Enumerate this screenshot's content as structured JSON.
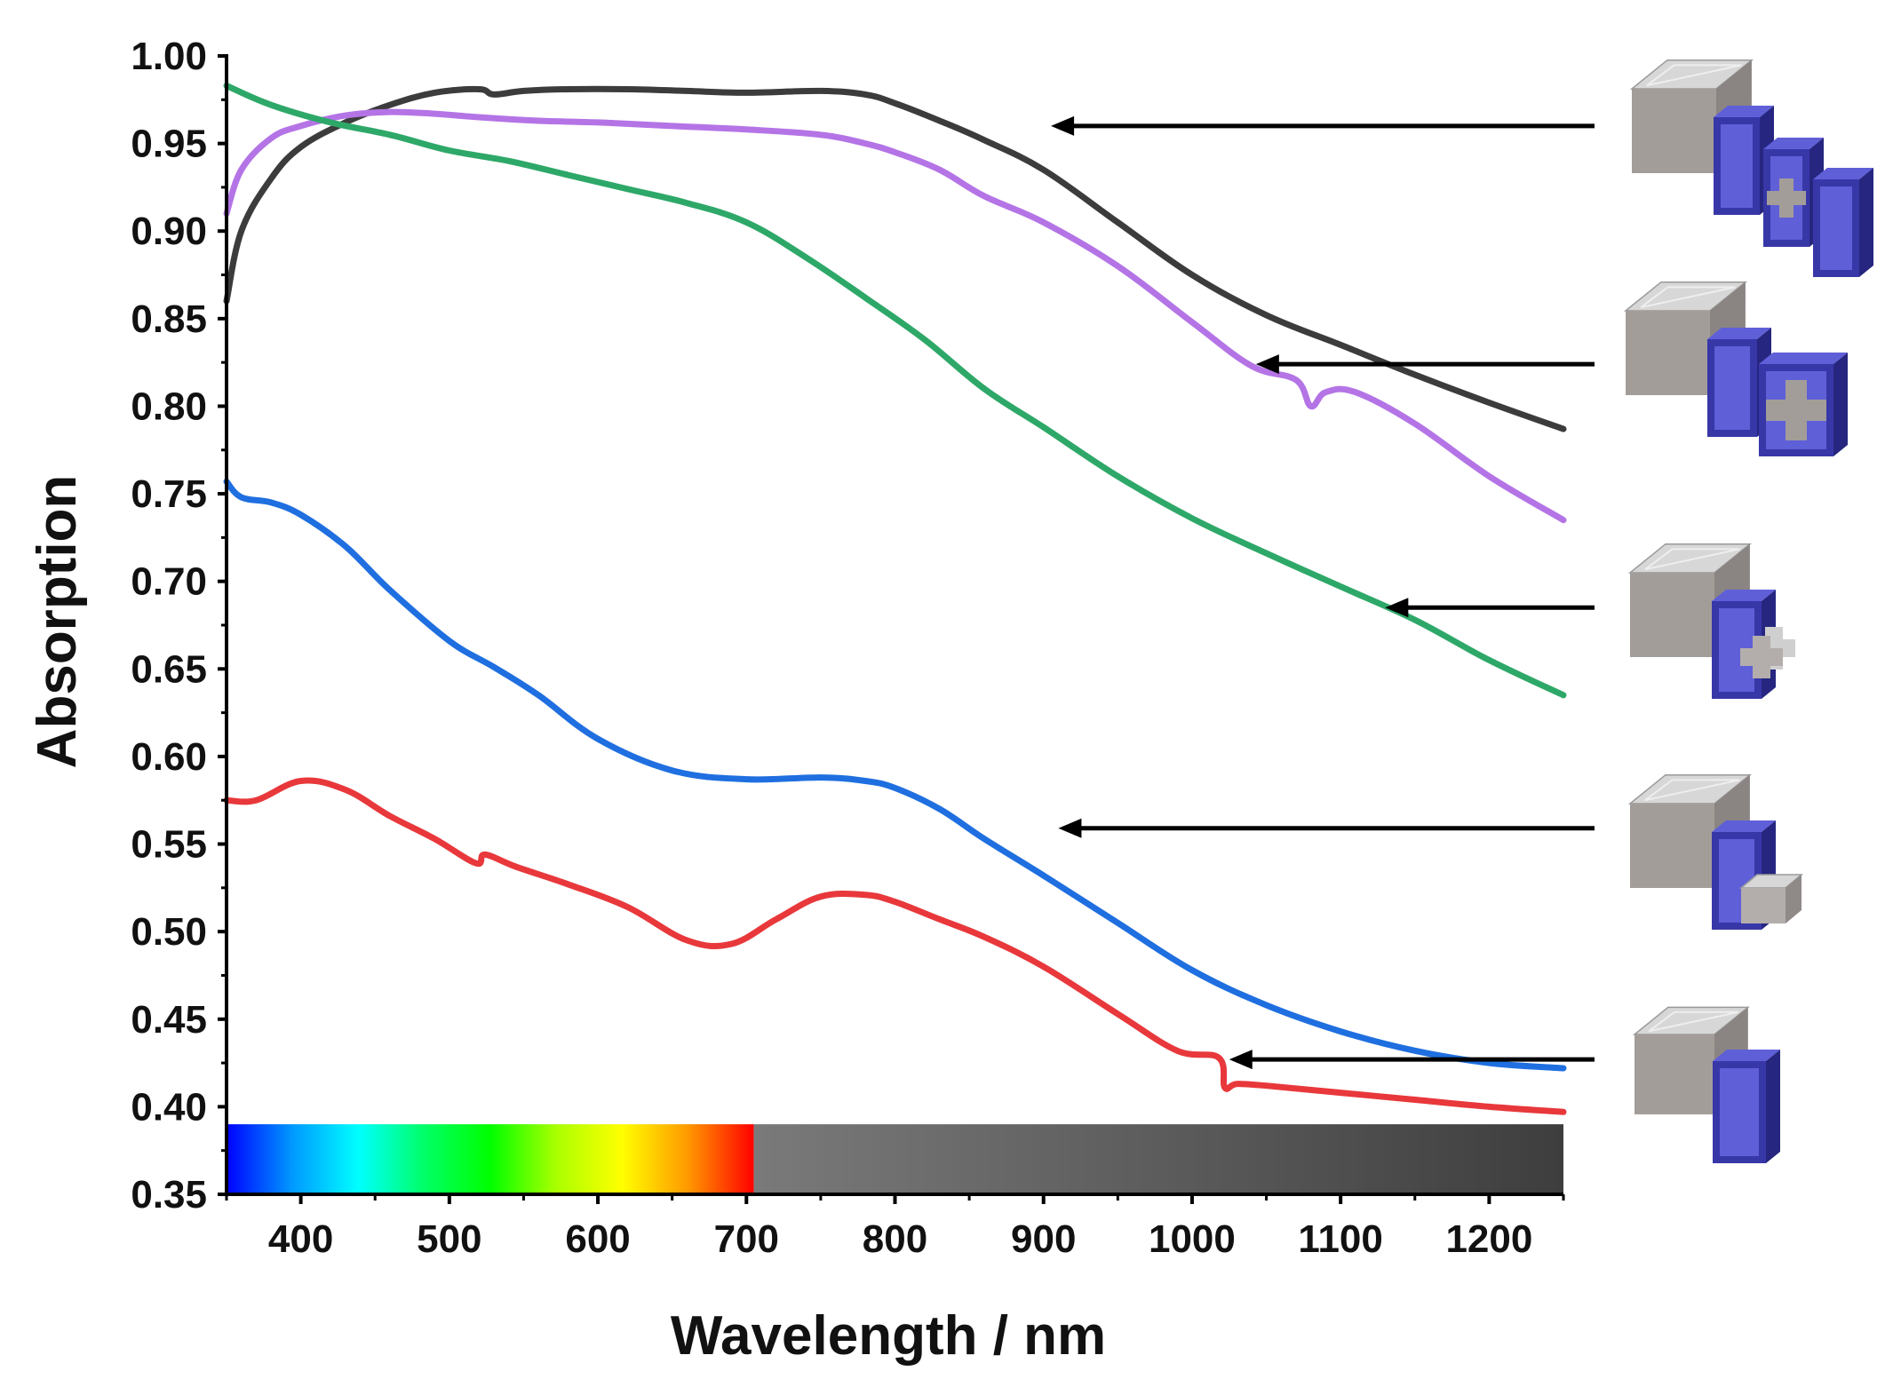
{
  "chart_data": {
    "type": "line",
    "title": "",
    "xlabel": "Wavelength / nm",
    "ylabel": "Absorption",
    "xlim": [
      350,
      1250
    ],
    "ylim": [
      0.35,
      1.0
    ],
    "xticks": [
      "400",
      "500",
      "600",
      "700",
      "800",
      "900",
      "1000",
      "1100",
      "1200"
    ],
    "yticks": [
      "0.35",
      "0.40",
      "0.45",
      "0.50",
      "0.55",
      "0.60",
      "0.65",
      "0.70",
      "0.75",
      "0.80",
      "0.85",
      "0.90",
      "0.95",
      "1.00"
    ],
    "grid": false,
    "spectrum_band": {
      "visible_range": [
        350,
        705
      ],
      "infrared_range": [
        705,
        1250
      ],
      "visible_colors": [
        "#0000ff",
        "#0099ff",
        "#00ffff",
        "#00ff66",
        "#00ff00",
        "#aaff00",
        "#ffff00",
        "#ff9900",
        "#ff0000"
      ],
      "infrared_colors": [
        "#7a7a7a",
        "#3e3e3e"
      ]
    },
    "series": [
      {
        "name": "four-layer structure (cube, plate, cross-cut plate, plate)",
        "color": "#3c3c3c",
        "x": [
          350,
          360,
          380,
          400,
          430,
          460,
          490,
          520,
          530,
          550,
          580,
          620,
          660,
          700,
          750,
          780,
          800,
          830,
          860,
          900,
          950,
          1000,
          1050,
          1100,
          1150,
          1200,
          1250
        ],
        "y": [
          0.86,
          0.9,
          0.93,
          0.948,
          0.962,
          0.972,
          0.979,
          0.981,
          0.978,
          0.98,
          0.981,
          0.981,
          0.98,
          0.979,
          0.98,
          0.978,
          0.973,
          0.963,
          0.952,
          0.935,
          0.905,
          0.875,
          0.852,
          0.835,
          0.818,
          0.802,
          0.787
        ]
      },
      {
        "name": "three-layer structure (cube, plate, plate with cross hole)",
        "color": "#b474e6",
        "x": [
          350,
          360,
          380,
          400,
          430,
          460,
          490,
          520,
          560,
          600,
          650,
          700,
          750,
          780,
          800,
          830,
          860,
          900,
          950,
          1000,
          1040,
          1070,
          1080,
          1090,
          1110,
          1150,
          1200,
          1250
        ],
        "y": [
          0.91,
          0.935,
          0.953,
          0.96,
          0.966,
          0.968,
          0.967,
          0.965,
          0.963,
          0.962,
          0.96,
          0.958,
          0.955,
          0.95,
          0.945,
          0.935,
          0.92,
          0.905,
          0.88,
          0.848,
          0.823,
          0.815,
          0.8,
          0.808,
          0.808,
          0.79,
          0.76,
          0.735
        ]
      },
      {
        "name": "two-layer structure (cube, plate with cross block)",
        "color": "#2ea868",
        "x": [
          350,
          380,
          420,
          460,
          500,
          540,
          580,
          620,
          660,
          700,
          740,
          780,
          820,
          860,
          900,
          950,
          1000,
          1050,
          1100,
          1150,
          1200,
          1250
        ],
        "y": [
          0.983,
          0.972,
          0.962,
          0.955,
          0.946,
          0.94,
          0.932,
          0.924,
          0.916,
          0.905,
          0.885,
          0.862,
          0.838,
          0.81,
          0.788,
          0.76,
          0.736,
          0.716,
          0.697,
          0.678,
          0.655,
          0.635
        ]
      },
      {
        "name": "two-layer structure (cube, plate with square block)",
        "color": "#1f6fe0",
        "x": [
          350,
          360,
          380,
          400,
          430,
          460,
          500,
          530,
          560,
          600,
          650,
          700,
          750,
          780,
          800,
          830,
          860,
          900,
          950,
          1000,
          1050,
          1100,
          1150,
          1200,
          1250
        ],
        "y": [
          0.757,
          0.748,
          0.745,
          0.738,
          0.72,
          0.695,
          0.666,
          0.651,
          0.635,
          0.61,
          0.592,
          0.587,
          0.588,
          0.586,
          0.582,
          0.57,
          0.553,
          0.532,
          0.505,
          0.478,
          0.458,
          0.443,
          0.432,
          0.425,
          0.422
        ]
      },
      {
        "name": "single-layer structure (cube, plate)",
        "color": "#e8383b",
        "x": [
          350,
          370,
          400,
          430,
          460,
          490,
          518,
          524,
          545,
          580,
          620,
          660,
          690,
          720,
          750,
          780,
          800,
          830,
          860,
          900,
          950,
          990,
          1018,
          1022,
          1030,
          1050,
          1100,
          1150,
          1200,
          1250
        ],
        "y": [
          0.575,
          0.575,
          0.586,
          0.581,
          0.566,
          0.553,
          0.539,
          0.544,
          0.537,
          0.527,
          0.514,
          0.495,
          0.493,
          0.507,
          0.52,
          0.521,
          0.517,
          0.507,
          0.497,
          0.48,
          0.453,
          0.432,
          0.428,
          0.411,
          0.413,
          0.412,
          0.408,
          0.404,
          0.4,
          0.397
        ]
      }
    ]
  },
  "legend": {
    "placement": "right",
    "entries": [
      {
        "series": "four-layer structure (cube, plate, cross-cut plate, plate)",
        "pointer": {
          "x": 905,
          "y": 0.96
        }
      },
      {
        "series": "three-layer structure (cube, plate, plate with cross hole)",
        "pointer": {
          "x": 1043,
          "y": 0.824
        }
      },
      {
        "series": "two-layer structure (cube, plate with cross block)",
        "pointer": {
          "x": 1130,
          "y": 0.685
        }
      },
      {
        "series": "two-layer structure (cube, plate with square block)",
        "pointer": {
          "x": 910,
          "y": 0.559
        }
      },
      {
        "series": "single-layer structure (cube, plate)",
        "pointer": {
          "x": 1025,
          "y": 0.427
        }
      }
    ],
    "icon_colors": {
      "cube_front": "#a39d99",
      "cube_top": "#d7d7d7",
      "cube_side": "#8a8582",
      "plate_front": "#3737a8",
      "plate_face": "#5f5fd8",
      "plate_side": "#262680"
    }
  }
}
